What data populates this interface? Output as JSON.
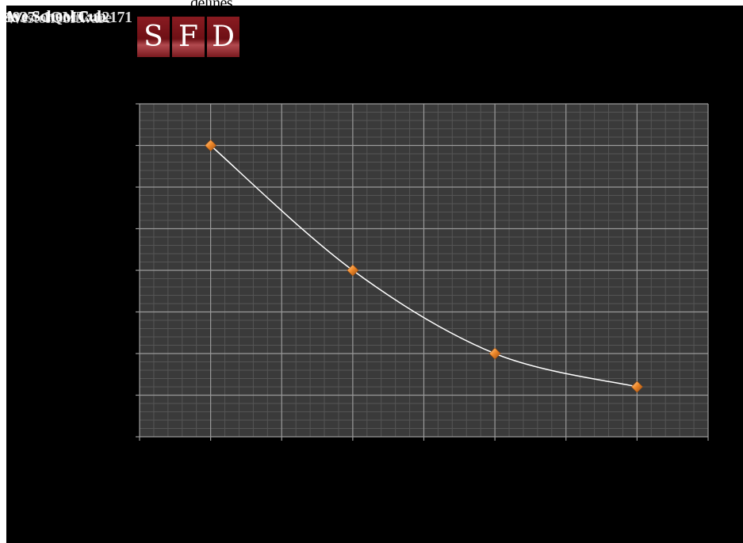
{
  "header": {
    "title_fragment": "delines",
    "overlapping_texts": [
      "Ave School Cub",
      "1937² 1QMT: 12171",
      "WestonSoftware"
    ]
  },
  "logo": {
    "letters": [
      "S",
      "F",
      "D"
    ],
    "color": "#8a1b21"
  },
  "chart_data": {
    "type": "line",
    "x": [
      1,
      2,
      3,
      4
    ],
    "y": [
      7,
      4,
      2,
      1.2
    ],
    "xlim": [
      0.5,
      4.5
    ],
    "ylim": [
      0,
      8
    ],
    "major_x_ticks": [
      0.5,
      1,
      1.5,
      2,
      2.5,
      3,
      3.5,
      4,
      4.5
    ],
    "major_y_ticks": [
      0,
      1,
      2,
      3,
      4,
      5,
      6,
      7,
      8
    ],
    "minor_per_major": 5,
    "grid": true,
    "smooth": true,
    "colors": {
      "plot_bg": "#3a3a3a",
      "minor_grid": "#555555",
      "major_grid": "#9a9a9a",
      "line": "#ffffff",
      "marker": "#f08a2a"
    }
  }
}
